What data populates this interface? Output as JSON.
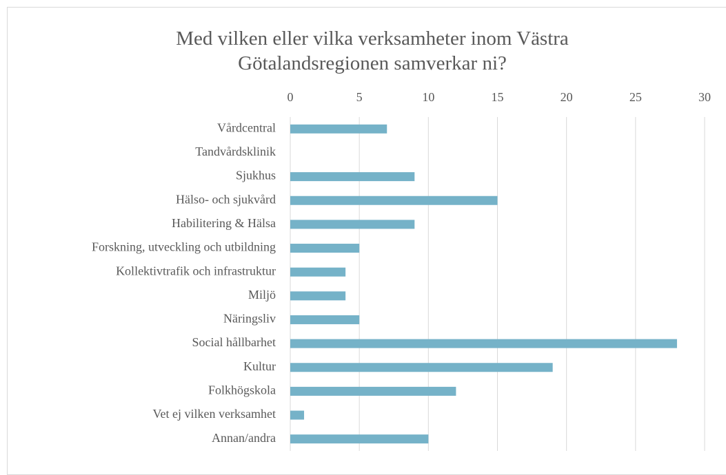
{
  "chart_data": {
    "type": "barh",
    "title": "Med vilken eller vilka verksamheter inom Västra Götalandsregionen samverkar ni?",
    "categories": [
      "Vårdcentral",
      "Tandvårdsklinik",
      "Sjukhus",
      "Hälso- och sjukvård",
      "Habilitering & Hälsa",
      "Forskning, utveckling och utbildning",
      "Kollektivtrafik och infrastruktur",
      "Miljö",
      "Näringsliv",
      "Social hållbarhet",
      "Kultur",
      "Folkhögskola",
      "Vet ej vilken verksamhet",
      "Annan/andra"
    ],
    "values": [
      7,
      0,
      9,
      15,
      9,
      5,
      4,
      4,
      5,
      28,
      19,
      12,
      1,
      10
    ],
    "color": "#75b2c8",
    "xlim": [
      0,
      30
    ],
    "xticks": [
      0,
      5,
      10,
      15,
      20,
      25,
      30
    ],
    "grid": true
  }
}
